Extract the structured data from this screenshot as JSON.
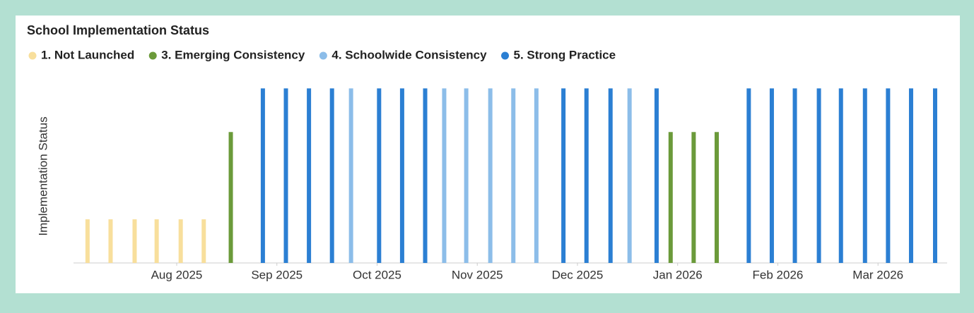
{
  "chart_data": {
    "type": "bar",
    "title": "School Implementation Status",
    "y_label": "Implementation Status",
    "xlim": [
      6.97,
      15.69
    ],
    "xticks": [
      {
        "value": 8,
        "label": "Aug 2025"
      },
      {
        "value": 9,
        "label": "Sep 2025"
      },
      {
        "value": 10,
        "label": "Oct 2025"
      },
      {
        "value": 11,
        "label": "Nov 2025"
      },
      {
        "value": 12,
        "label": "Dec 2025"
      },
      {
        "value": 13,
        "label": "Jan 2026"
      },
      {
        "value": 14,
        "label": "Feb 2026"
      },
      {
        "value": 15,
        "label": "Mar 2026"
      }
    ],
    "ylim": [
      0,
      4.2
    ],
    "legend": "top-left",
    "series": [
      {
        "name": "1. Not Launched",
        "color": "#f8df9c",
        "x": [
          7.11,
          7.34,
          7.58,
          7.8,
          8.04,
          8.27
        ],
        "values": [
          1,
          1,
          1,
          1,
          1,
          1
        ]
      },
      {
        "name": "3. Emerging Consistency",
        "color": "#6b9a3a",
        "x": [
          8.54,
          12.93,
          13.16,
          13.39
        ],
        "values": [
          3,
          3,
          3,
          3
        ]
      },
      {
        "name": "4. Schoolwide Consistency",
        "color": "#8cbde9",
        "x": [
          9.74,
          10.67,
          10.89,
          11.13,
          11.36,
          11.59,
          12.52
        ],
        "values": [
          4,
          4,
          4,
          4,
          4,
          4,
          4
        ]
      },
      {
        "name": "5. Strong Practice",
        "color": "#2b7fd3",
        "x": [
          8.86,
          9.09,
          9.32,
          9.55,
          10.02,
          10.25,
          10.48,
          11.86,
          12.09,
          12.33,
          12.79,
          13.71,
          13.94,
          14.17,
          14.41,
          14.63,
          14.87,
          15.1,
          15.33,
          15.57
        ],
        "values": [
          4,
          4,
          4,
          4,
          4,
          4,
          4,
          4,
          4,
          4,
          4,
          4,
          4,
          4,
          4,
          4,
          4,
          4,
          4,
          4
        ]
      }
    ]
  }
}
